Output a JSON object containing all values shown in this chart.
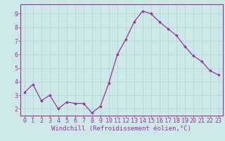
{
  "x": [
    0,
    1,
    2,
    3,
    4,
    5,
    6,
    7,
    8,
    9,
    10,
    11,
    12,
    13,
    14,
    15,
    16,
    17,
    18,
    19,
    20,
    21,
    22,
    23
  ],
  "y": [
    3.2,
    3.8,
    2.6,
    3.0,
    2.0,
    2.5,
    2.4,
    2.4,
    1.7,
    2.2,
    3.9,
    6.0,
    7.1,
    8.4,
    9.2,
    9.0,
    8.4,
    7.9,
    7.4,
    6.6,
    5.9,
    5.5,
    4.8,
    4.5
  ],
  "line_color": "#993399",
  "marker": "D",
  "marker_size": 1.8,
  "bg_color": "#cce8e8",
  "grid_color": "#b0d4d4",
  "axis_color": "#993399",
  "tick_color": "#993399",
  "label_color": "#993399",
  "xlabel": "Windchill (Refroidissement éolien,°C)",
  "ylim": [
    1.5,
    9.7
  ],
  "yticks": [
    2,
    3,
    4,
    5,
    6,
    7,
    8,
    9
  ],
  "xlim": [
    -0.5,
    23.5
  ],
  "xticks": [
    0,
    1,
    2,
    3,
    4,
    5,
    6,
    7,
    8,
    9,
    10,
    11,
    12,
    13,
    14,
    15,
    16,
    17,
    18,
    19,
    20,
    21,
    22,
    23
  ],
  "tick_fontsize": 6.0,
  "xlabel_fontsize": 6.5
}
